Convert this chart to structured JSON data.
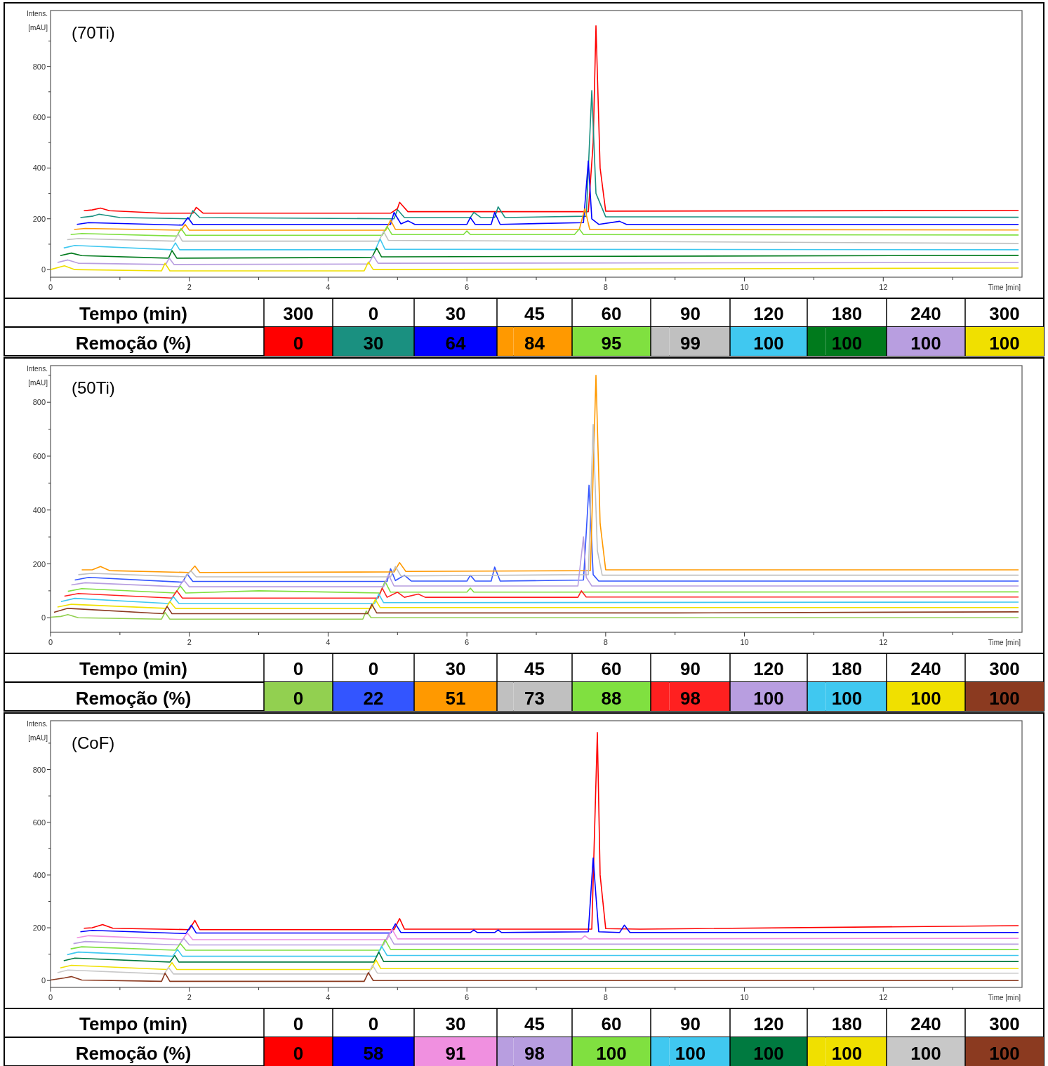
{
  "chart_data": [
    {
      "type": "line",
      "xlabel": "Time [min]",
      "ylabel": "Intens. [mAU]",
      "legend": "bottom",
      "grid": false,
      "annotations": [
        "(70Ti)",
        "Tempo (min)",
        "Remoção (%)",
        "300",
        "0",
        "30",
        "45",
        "60",
        "90",
        "120",
        "180",
        "240",
        "300"
      ],
      "xlim": [
        0,
        14
      ],
      "xticks": [
        0,
        {
          "value": 1,
          "label": null
        },
        2,
        {
          "value": 3,
          "label": null
        },
        4,
        {
          "value": 5,
          "label": null
        },
        6,
        {
          "value": 7,
          "label": null
        },
        8,
        {
          "value": 9,
          "label": null
        },
        10,
        {
          "value": 11,
          "label": null
        },
        12,
        {
          "value": 13,
          "label": null
        }
      ],
      "ylim": [
        -30,
        1020
      ],
      "yticks": [
        0,
        {
          "value": 100,
          "label": null
        },
        200,
        {
          "value": 300,
          "label": null
        },
        400,
        {
          "value": 500,
          "label": null
        },
        600,
        {
          "value": 700,
          "label": null
        },
        800,
        {
          "value": 900,
          "label": null
        }
      ],
      "series": [
        {
          "name": "0",
          "color": "#ff0000",
          "x": [
            0.48,
            0.6,
            0.72,
            0.85,
            1.6,
            2.05,
            2.1,
            2.2,
            4.9,
            5.0,
            5.03,
            5.15,
            7.75,
            7.82,
            7.86,
            7.92,
            8.0,
            13.95
          ],
          "values": [
            232,
            235,
            242,
            232,
            222,
            222,
            245,
            222,
            222,
            240,
            265,
            228,
            228,
            500,
            960,
            400,
            230,
            233
          ]
        },
        {
          "name": "30",
          "color": "#1a9080",
          "x": [
            0.43,
            0.6,
            0.7,
            1.0,
            2.0,
            2.05,
            2.15,
            4.95,
            5.0,
            5.1,
            6.05,
            6.1,
            6.2,
            6.4,
            6.45,
            6.55,
            7.72,
            7.8,
            7.86,
            8.0,
            13.95
          ],
          "values": [
            205,
            210,
            218,
            205,
            200,
            232,
            205,
            200,
            236,
            205,
            205,
            225,
            205,
            205,
            247,
            205,
            210,
            705,
            300,
            208,
            206
          ]
        },
        {
          "name": "64",
          "color": "#0000ff",
          "x": [
            0.38,
            0.55,
            1.9,
            1.98,
            2.05,
            4.9,
            4.95,
            5.05,
            5.15,
            5.25,
            6.0,
            6.05,
            6.12,
            6.35,
            6.4,
            6.48,
            7.68,
            7.75,
            7.8,
            7.9,
            8.2,
            8.3,
            13.95
          ],
          "values": [
            178,
            185,
            175,
            205,
            178,
            178,
            225,
            180,
            192,
            178,
            178,
            205,
            178,
            178,
            225,
            178,
            185,
            428,
            200,
            178,
            190,
            178,
            178
          ]
        },
        {
          "name": "84",
          "color": "#ff9900",
          "x": [
            0.34,
            0.5,
            1.88,
            1.94,
            2.0,
            4.83,
            4.9,
            4.97,
            7.62,
            7.7,
            7.77,
            13.95
          ],
          "values": [
            158,
            162,
            155,
            178,
            155,
            155,
            195,
            158,
            158,
            240,
            158,
            156
          ]
        },
        {
          "name": "95",
          "color": "#80e040",
          "x": [
            0.29,
            0.45,
            1.82,
            1.88,
            1.95,
            4.78,
            4.85,
            4.92,
            5.95,
            6.0,
            6.05,
            7.55,
            7.62,
            7.68,
            13.95
          ],
          "values": [
            138,
            142,
            132,
            162,
            135,
            135,
            170,
            138,
            138,
            152,
            138,
            138,
            160,
            138,
            136
          ]
        },
        {
          "name": "99",
          "color": "#c0c0c0",
          "x": [
            0.24,
            0.4,
            1.78,
            1.84,
            1.9,
            4.73,
            4.8,
            4.87,
            13.95
          ],
          "values": [
            118,
            122,
            112,
            140,
            112,
            112,
            150,
            115,
            103
          ]
        },
        {
          "name": "100",
          "color": "#40c8f0",
          "x": [
            0.19,
            0.35,
            1.74,
            1.8,
            1.86,
            4.68,
            4.75,
            4.82,
            13.95
          ],
          "values": [
            85,
            95,
            78,
            105,
            78,
            78,
            120,
            80,
            78
          ]
        },
        {
          "name": "100",
          "color": "#007a1c",
          "x": [
            0.14,
            0.3,
            0.45,
            1.7,
            1.75,
            1.82,
            4.63,
            4.7,
            4.77,
            13.95
          ],
          "values": [
            55,
            65,
            55,
            45,
            75,
            45,
            48,
            85,
            50,
            56
          ]
        },
        {
          "name": "100",
          "color": "#b89ee0",
          "x": [
            0.1,
            0.25,
            0.4,
            1.66,
            1.71,
            1.78,
            4.58,
            4.65,
            4.72,
            13.95
          ],
          "values": [
            28,
            38,
            25,
            20,
            45,
            20,
            22,
            55,
            25,
            28
          ]
        },
        {
          "name": "100",
          "color": "#f0e000",
          "x": [
            0,
            0.2,
            0.35,
            1.6,
            1.65,
            1.72,
            4.52,
            4.58,
            4.65,
            13.95
          ],
          "values": [
            0,
            15,
            0,
            -5,
            25,
            -5,
            -5,
            30,
            0,
            6
          ]
        }
      ]
    },
    {
      "type": "line",
      "xlabel": "Time [min]",
      "ylabel": "Intens. [mAU]",
      "legend": "bottom",
      "grid": false,
      "annotations": [
        "(50Ti)",
        "Tempo (min)",
        "Remoção (%)",
        "0",
        "0",
        "30",
        "45",
        "60",
        "90",
        "120",
        "180",
        "240",
        "300"
      ],
      "xlim": [
        0,
        14
      ],
      "xticks": [
        0,
        {
          "value": 1,
          "label": null
        },
        2,
        {
          "value": 3,
          "label": null
        },
        4,
        {
          "value": 5,
          "label": null
        },
        6,
        {
          "value": 7,
          "label": null
        },
        8,
        {
          "value": 9,
          "label": null
        },
        10,
        {
          "value": 11,
          "label": null
        },
        12,
        {
          "value": 13,
          "label": null
        }
      ],
      "ylim": [
        -54,
        936
      ],
      "yticks": [
        0,
        {
          "value": 100,
          "label": null
        },
        200,
        {
          "value": 300,
          "label": null
        },
        400,
        {
          "value": 500,
          "label": null
        },
        600,
        {
          "value": 700,
          "label": null
        },
        800,
        {
          "value": 900,
          "label": null
        }
      ],
      "series": [
        {
          "name": "0",
          "color": "#92d050",
          "x": [
            0,
            0.15,
            0.25,
            0.4,
            1.6,
            1.65,
            1.72,
            4.5,
            4.55,
            4.62,
            9.0,
            13.95
          ],
          "values": [
            2,
            5,
            12,
            0,
            -5,
            20,
            -5,
            -5,
            25,
            0,
            0,
            0
          ]
        },
        {
          "name": "22",
          "color": "#3355ff",
          "x": [
            0.35,
            0.55,
            1.9,
            1.97,
            2.05,
            4.85,
            4.9,
            4.97,
            5.1,
            5.2,
            6.0,
            6.05,
            6.12,
            6.35,
            6.4,
            6.48,
            7.68,
            7.76,
            7.82,
            7.9,
            13.95
          ],
          "values": [
            140,
            150,
            132,
            162,
            135,
            135,
            182,
            138,
            158,
            136,
            136,
            158,
            136,
            136,
            188,
            136,
            140,
            492,
            160,
            136,
            136
          ]
        },
        {
          "name": "51",
          "color": "#ff9900",
          "x": [
            0.45,
            0.6,
            0.72,
            0.85,
            2.0,
            2.08,
            2.15,
            4.95,
            5.03,
            5.12,
            7.78,
            7.86,
            7.92,
            8.0,
            13.95
          ],
          "values": [
            178,
            178,
            190,
            175,
            168,
            192,
            168,
            170,
            205,
            172,
            175,
            900,
            350,
            178,
            178
          ]
        },
        {
          "name": "73",
          "color": "#c0c0c0",
          "x": [
            0.4,
            0.6,
            1.95,
            2.02,
            2.1,
            4.9,
            4.97,
            5.05,
            7.75,
            7.82,
            7.88,
            7.95,
            13.95
          ],
          "values": [
            160,
            165,
            152,
            175,
            152,
            152,
            190,
            155,
            160,
            718,
            250,
            158,
            158
          ]
        },
        {
          "name": "88",
          "color": "#80e040",
          "x": [
            0.25,
            0.45,
            1.8,
            1.87,
            1.95,
            3.0,
            4.75,
            4.82,
            4.9,
            6.0,
            6.05,
            6.1,
            13.95
          ],
          "values": [
            98,
            108,
            92,
            118,
            92,
            100,
            92,
            135,
            95,
            95,
            110,
            95,
            96
          ]
        },
        {
          "name": "98",
          "color": "#ff2020",
          "x": [
            0.2,
            0.4,
            1.75,
            1.82,
            1.9,
            4.72,
            4.78,
            4.85,
            5.0,
            5.1,
            5.3,
            5.4,
            7.6,
            7.65,
            7.72,
            13.95
          ],
          "values": [
            80,
            90,
            73,
            100,
            73,
            73,
            110,
            76,
            95,
            76,
            88,
            76,
            76,
            100,
            77,
            77
          ]
        },
        {
          "name": "100",
          "color": "#b89ee0",
          "x": [
            0.3,
            0.5,
            1.85,
            1.92,
            2.0,
            4.8,
            4.87,
            4.95,
            7.6,
            7.68,
            7.72,
            7.8,
            13.95
          ],
          "values": [
            122,
            130,
            115,
            140,
            115,
            115,
            160,
            118,
            118,
            300,
            150,
            118,
            118
          ]
        },
        {
          "name": "100",
          "color": "#40c8f0",
          "x": [
            0.15,
            0.35,
            1.7,
            1.77,
            1.85,
            4.67,
            4.73,
            4.8,
            13.95
          ],
          "values": [
            60,
            72,
            53,
            78,
            53,
            53,
            88,
            56,
            58
          ]
        },
        {
          "name": "100",
          "color": "#f0e000",
          "x": [
            0.1,
            0.3,
            1.66,
            1.72,
            1.8,
            4.62,
            4.68,
            4.75,
            13.95
          ],
          "values": [
            40,
            50,
            35,
            60,
            35,
            35,
            68,
            38,
            38
          ]
        },
        {
          "name": "100",
          "color": "#8b3a20",
          "x": [
            0.05,
            0.25,
            1.62,
            1.68,
            1.75,
            4.57,
            4.63,
            4.7,
            9.0,
            13.95
          ],
          "values": [
            20,
            35,
            15,
            42,
            15,
            15,
            50,
            18,
            18,
            22
          ]
        }
      ]
    },
    {
      "type": "line",
      "xlabel": "Time [min]",
      "ylabel": "Intens. [mAU]",
      "legend": "bottom",
      "grid": false,
      "annotations": [
        "(CoF)",
        "Tempo (min)",
        "Remoção (%)",
        "0",
        "0",
        "30",
        "45",
        "60",
        "90",
        "120",
        "180",
        "240",
        "300"
      ],
      "xlim": [
        0,
        14
      ],
      "xticks": [
        0,
        {
          "value": 1,
          "label": null
        },
        2,
        {
          "value": 3,
          "label": null
        },
        4,
        {
          "value": 5,
          "label": null
        },
        6,
        {
          "value": 7,
          "label": null
        },
        8,
        {
          "value": 9,
          "label": null
        },
        10,
        {
          "value": 11,
          "label": null
        },
        12,
        {
          "value": 13,
          "label": null
        }
      ],
      "ylim": [
        -26,
        985
      ],
      "yticks": [
        0,
        {
          "value": 100,
          "label": null
        },
        200,
        {
          "value": 300,
          "label": null
        },
        400,
        {
          "value": 500,
          "label": null
        },
        600,
        {
          "value": 700,
          "label": null
        },
        800,
        {
          "value": 900,
          "label": null
        }
      ],
      "series": [
        {
          "name": "0",
          "color": "#ff0000",
          "x": [
            0.48,
            0.6,
            0.75,
            0.9,
            2.0,
            2.08,
            2.15,
            4.95,
            5.03,
            5.1,
            7.8,
            7.88,
            7.92,
            8.0,
            8.5,
            13.95
          ],
          "values": [
            198,
            200,
            212,
            198,
            193,
            228,
            193,
            193,
            235,
            195,
            195,
            940,
            400,
            197,
            195,
            208
          ]
        },
        {
          "name": "58",
          "color": "#0000ff",
          "x": [
            0.43,
            0.6,
            1.95,
            2.03,
            2.1,
            4.9,
            4.97,
            5.05,
            6.05,
            6.1,
            6.15,
            6.4,
            6.45,
            6.5,
            7.75,
            7.82,
            7.86,
            7.9,
            8.2,
            8.27,
            8.35,
            13.95
          ],
          "values": [
            185,
            190,
            178,
            210,
            180,
            180,
            215,
            182,
            182,
            192,
            182,
            182,
            192,
            182,
            185,
            465,
            320,
            185,
            182,
            210,
            182,
            182
          ]
        },
        {
          "name": "91",
          "color": "#f090e0",
          "x": [
            0.38,
            0.55,
            1.9,
            1.97,
            2.05,
            4.85,
            4.92,
            5.0,
            7.65,
            7.7,
            7.76,
            13.95
          ],
          "values": [
            162,
            170,
            155,
            180,
            155,
            155,
            195,
            158,
            158,
            170,
            158,
            160
          ]
        },
        {
          "name": "98",
          "color": "#b89ee0",
          "x": [
            0.33,
            0.5,
            1.85,
            1.92,
            2.0,
            4.8,
            4.87,
            4.95,
            13.95
          ],
          "values": [
            140,
            148,
            135,
            160,
            135,
            135,
            175,
            138,
            138
          ]
        },
        {
          "name": "100",
          "color": "#80e040",
          "x": [
            0.29,
            0.45,
            1.8,
            1.87,
            1.95,
            4.75,
            4.82,
            4.9,
            13.95
          ],
          "values": [
            120,
            128,
            115,
            140,
            115,
            115,
            155,
            118,
            118
          ]
        },
        {
          "name": "100",
          "color": "#40c8f0",
          "x": [
            0.24,
            0.4,
            1.76,
            1.83,
            1.9,
            4.7,
            4.77,
            4.85,
            13.95
          ],
          "values": [
            98,
            108,
            92,
            118,
            92,
            92,
            130,
            95,
            95
          ]
        },
        {
          "name": "100",
          "color": "#007a40",
          "x": [
            0.19,
            0.35,
            1.72,
            1.79,
            1.85,
            4.66,
            4.73,
            4.8,
            13.95
          ],
          "values": [
            75,
            85,
            70,
            95,
            70,
            70,
            108,
            72,
            72
          ]
        },
        {
          "name": "100",
          "color": "#f0e000",
          "x": [
            0.14,
            0.3,
            1.68,
            1.75,
            1.82,
            4.62,
            4.69,
            4.76,
            8.6,
            8.9,
            13.95
          ],
          "values": [
            48,
            58,
            42,
            68,
            42,
            42,
            78,
            45,
            45,
            45,
            46
          ]
        },
        {
          "name": "100",
          "color": "#c8c8c8",
          "x": [
            0.1,
            0.25,
            1.64,
            1.7,
            1.77,
            4.58,
            4.64,
            4.71,
            13.95
          ],
          "values": [
            30,
            40,
            25,
            50,
            25,
            25,
            58,
            28,
            28
          ]
        },
        {
          "name": "100",
          "color": "#8b3a20",
          "x": [
            0,
            0.2,
            0.3,
            0.45,
            1.6,
            1.65,
            1.72,
            4.52,
            4.58,
            4.65,
            13.95
          ],
          "values": [
            2,
            10,
            15,
            2,
            -3,
            28,
            -3,
            -3,
            30,
            0,
            0
          ]
        }
      ]
    }
  ]
}
